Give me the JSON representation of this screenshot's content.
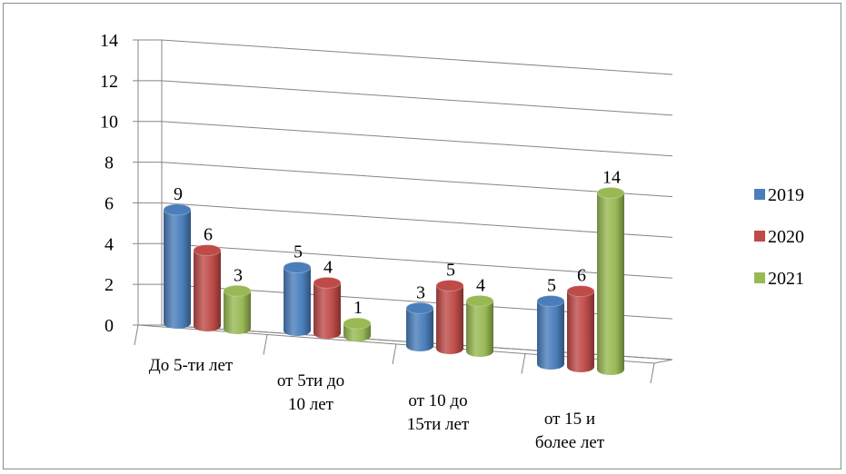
{
  "chart_data": {
    "type": "bar",
    "subtype": "3d-cylinder-clustered",
    "categories": [
      [
        "До 5-ти лет"
      ],
      [
        "от 5ти до",
        "10 лет"
      ],
      [
        "от 10 до",
        "15ти лет"
      ],
      [
        "от 15 и",
        "более лет"
      ]
    ],
    "series": [
      {
        "name": "2019",
        "color": "#4a7ebb",
        "values": [
          9,
          5,
          3,
          5
        ]
      },
      {
        "name": "2020",
        "color": "#be4b48",
        "values": [
          6,
          4,
          5,
          6
        ]
      },
      {
        "name": "2021",
        "color": "#98b954",
        "values": [
          3,
          1,
          4,
          14
        ]
      }
    ],
    "y_ticks": [
      "0",
      "2",
      "4",
      "6",
      "8",
      "10",
      "12",
      "14"
    ],
    "ylim": [
      0,
      14
    ],
    "grid": true,
    "legend": "right",
    "data_labels": true
  }
}
